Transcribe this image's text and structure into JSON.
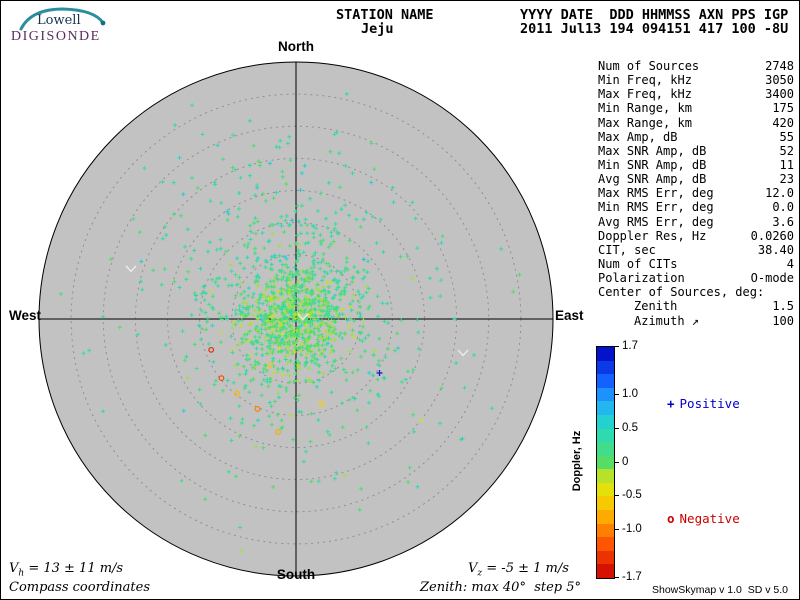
{
  "logo": {
    "brand": "Lowell",
    "product": "DIGISONDE"
  },
  "header": {
    "station_label": "STATION NAME",
    "station_value": "Jeju",
    "columns_label": "YYYY DATE  DDD HHMMSS AXN PPS IGP",
    "columns_value": "2011 Jul13 194 094151 417 100 -8U"
  },
  "stats": {
    "rows": [
      {
        "label": "Num of Sources",
        "value": "2748"
      },
      {
        "label": "Min Freq, kHz",
        "value": "3050"
      },
      {
        "label": "Max Freq, kHz",
        "value": "3400"
      },
      {
        "label": "Min Range, km",
        "value": "175"
      },
      {
        "label": "Max Range, km",
        "value": "420"
      },
      {
        "label": "Max Amp, dB",
        "value": "55"
      },
      {
        "label": "Max SNR Amp, dB",
        "value": "52"
      },
      {
        "label": "Min SNR Amp, dB",
        "value": "11"
      },
      {
        "label": "Avg SNR Amp, dB",
        "value": "23"
      },
      {
        "label": "Max RMS Err, deg",
        "value": "12.0"
      },
      {
        "label": "Min RMS Err, deg",
        "value": "0.0"
      },
      {
        "label": "Avg RMS Err, deg",
        "value": "3.6"
      },
      {
        "label": "Doppler Res, Hz",
        "value": "0.0260"
      },
      {
        "label": "CIT, sec",
        "value": "38.40"
      },
      {
        "label": "Num of CITs",
        "value": "4"
      },
      {
        "label": "Polarization",
        "value": "O-mode"
      },
      {
        "label": "Center of Sources, deg:",
        "value": ""
      },
      {
        "label": "Zenith",
        "value": "1.5",
        "indent": true
      },
      {
        "label": "Azimuth ↗",
        "value": "100",
        "indent": true
      }
    ]
  },
  "annotations": {
    "vh": {
      "symbol": "V",
      "sub": "h",
      "text": " = 13 ± 11 m/s"
    },
    "vz": {
      "symbol": "V",
      "sub": "z",
      "text": " = -5 ± 1 m/s"
    },
    "coordinates": "Compass coordinates",
    "zenith_note": "Zenith: max 40°  step 5°",
    "version": "ShowSkymap v 1.0  SD v 5.0"
  },
  "chart_data": {
    "type": "scatter",
    "projection": "polar-compass-skymap",
    "zenith_max_deg": 40,
    "zenith_step_deg": 5,
    "compass": {
      "north": "North",
      "east": "East",
      "south": "South",
      "west": "West"
    },
    "plot_bg_color": "#c2c2c2",
    "ring_color": "#8f8f8f",
    "chevron_color": "#ececec",
    "seed": 7,
    "colorbar": {
      "label": "Doppler, Hz",
      "min": -1.7,
      "max": 1.7,
      "ticks": [
        {
          "v": 1.7,
          "label": "1.7"
        },
        {
          "v": 1.0,
          "label": "1.0"
        },
        {
          "v": 0.5,
          "label": "0.5"
        },
        {
          "v": 0,
          "label": "0"
        },
        {
          "v": -0.5,
          "label": "-0.5"
        },
        {
          "v": -1.0,
          "label": "-1.0"
        },
        {
          "v": -1.7,
          "label": "-1.7"
        }
      ],
      "stops": [
        {
          "v": -1.7,
          "c": "#cc0000"
        },
        {
          "v": -1.2,
          "c": "#ff5500"
        },
        {
          "v": -0.8,
          "c": "#ffaa00"
        },
        {
          "v": -0.45,
          "c": "#f0e000"
        },
        {
          "v": -0.15,
          "c": "#aae235"
        },
        {
          "v": 0.0,
          "c": "#55dd66"
        },
        {
          "v": 0.25,
          "c": "#3cdc96"
        },
        {
          "v": 0.55,
          "c": "#22d8c8"
        },
        {
          "v": 0.9,
          "c": "#22aaff"
        },
        {
          "v": 1.25,
          "c": "#1155ff"
        },
        {
          "v": 1.7,
          "c": "#0000bb"
        }
      ]
    },
    "legend": [
      {
        "symbol": "+",
        "label": "Positive",
        "color": "#0000cc"
      },
      {
        "symbol": "o",
        "label": "Negative",
        "color": "#cc0000"
      }
    ],
    "clusters": [
      {
        "cx": 0.0,
        "cy": 0.01,
        "sigma": 0.095,
        "count": 620,
        "dop_mean": -0.05,
        "dop_sd": 0.1
      },
      {
        "cx": -0.01,
        "cy": -0.03,
        "sigma": 0.2,
        "count": 430,
        "dop_mean": 0.22,
        "dop_sd": 0.14
      },
      {
        "cx": -0.02,
        "cy": -0.24,
        "sigma": 0.28,
        "count": 150,
        "dop_mean": 0.3,
        "dop_sd": 0.15
      },
      {
        "cx": 0.0,
        "cy": -0.02,
        "sigma": 0.46,
        "count": 110,
        "dop_mean": 0.28,
        "dop_sd": 0.18
      },
      {
        "cx": -0.04,
        "cy": 0.22,
        "sigma": 0.27,
        "count": 55,
        "dop_mean": 0.12,
        "dop_sd": 0.18
      }
    ],
    "negative_points": [
      {
        "x": -0.29,
        "y": 0.23,
        "dop": -1.25
      },
      {
        "x": -0.15,
        "y": 0.35,
        "dop": -1.0
      },
      {
        "x": -0.23,
        "y": 0.29,
        "dop": -0.7
      },
      {
        "x": -0.33,
        "y": 0.12,
        "dop": -1.45
      },
      {
        "x": -0.07,
        "y": 0.44,
        "dop": -0.8
      },
      {
        "x": 0.1,
        "y": 0.33,
        "dop": -0.55
      },
      {
        "x": -0.1,
        "y": 0.18,
        "dop": -0.6
      }
    ],
    "highlight_points": [
      {
        "x": 0.325,
        "y": 0.21,
        "dop": 1.55
      }
    ],
    "chevrons": [
      {
        "x": -0.642,
        "y": -0.195
      },
      {
        "x": 0.65,
        "y": 0.132
      },
      {
        "x": 0.027,
        "y": -0.008
      }
    ]
  }
}
